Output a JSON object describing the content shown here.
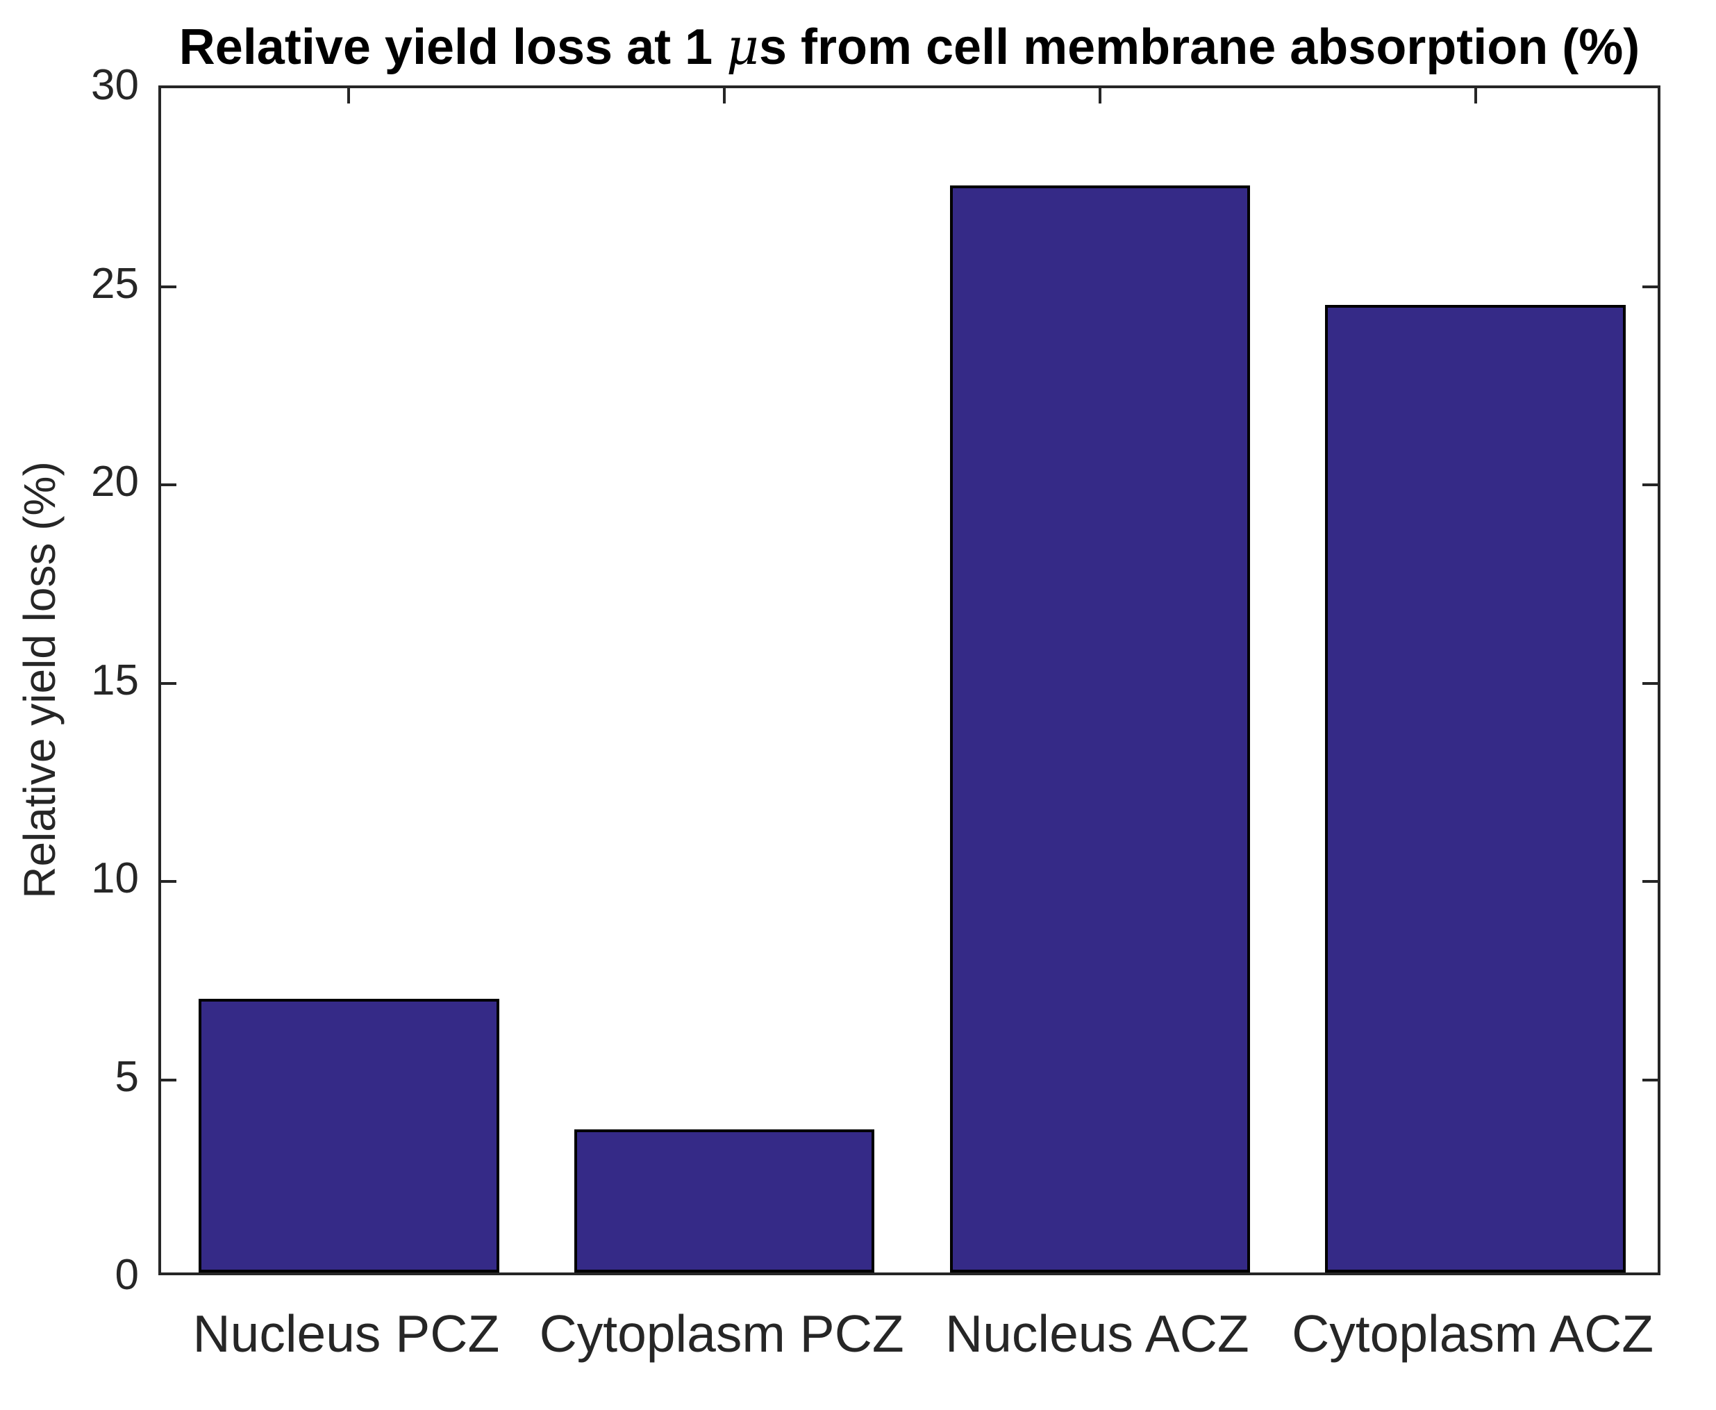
{
  "figure": {
    "title_prefix": "Relative yield loss at 1 ",
    "title_mu": "μ",
    "title_suffix": "s from cell membrane absorption (%)"
  },
  "chart_data": {
    "type": "bar",
    "title": "Relative yield loss at 1 μs from cell membrane absorption (%)",
    "categories": [
      "Nucleus PCZ",
      "Cytoplasm PCZ",
      "Nucleus ACZ",
      "Cytoplasm ACZ"
    ],
    "values": [
      6.9,
      3.6,
      27.4,
      24.4
    ],
    "xlabel": "",
    "ylabel": "Relative yield loss (%)",
    "ylim": [
      0,
      30
    ],
    "y_ticks": [
      0,
      5,
      10,
      15,
      20,
      25,
      30
    ],
    "bar_width_fraction": 0.8,
    "grid": false,
    "legend": null,
    "colors": {
      "bar_fill": "#352a87",
      "bar_edge": "#000000",
      "axis": "#262626",
      "title_text": "#000000",
      "background": "#ffffff"
    }
  }
}
